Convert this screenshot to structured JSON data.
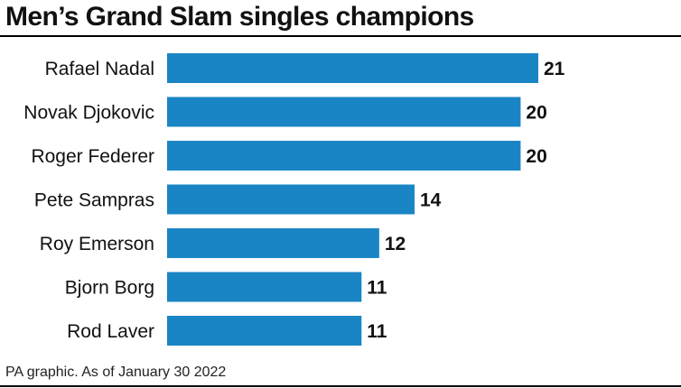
{
  "title": "Men’s Grand Slam singles champions",
  "source": "PA graphic. As of January 30 2022",
  "colors": {
    "bar": "#1a85c4",
    "text": "#111111"
  },
  "chart_data": {
    "type": "bar",
    "orientation": "horizontal",
    "categories": [
      "Rafael Nadal",
      "Novak Djokovic",
      "Roger Federer",
      "Pete Sampras",
      "Roy Emerson",
      "Bjorn Borg",
      "Rod Laver"
    ],
    "values": [
      21,
      20,
      20,
      14,
      12,
      11,
      11
    ],
    "data_labels": [
      "21",
      "20",
      "20",
      "14",
      "12",
      "11",
      "11"
    ],
    "xlim": [
      0,
      21
    ],
    "grid": false,
    "legend": "none"
  }
}
